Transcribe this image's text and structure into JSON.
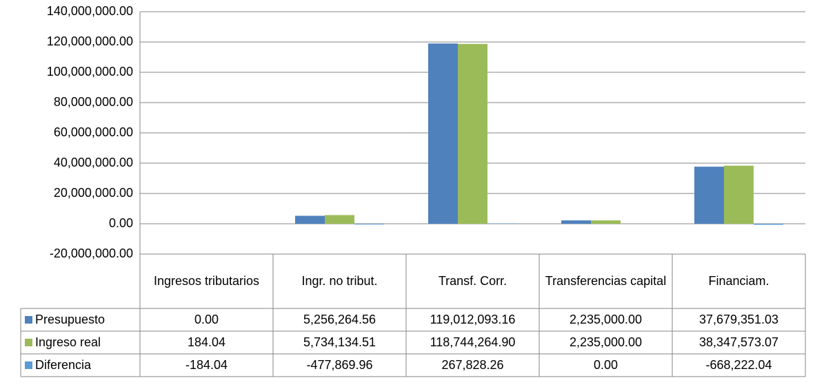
{
  "chart_data": {
    "type": "bar",
    "categories": [
      "Ingresos tributarios",
      "Ingr. no tribut.",
      "Transf. Corr.",
      "Transferencias capital",
      "Financiam."
    ],
    "series": [
      {
        "name": "Presupuesto",
        "color": "#4f81bd",
        "values": [
          0,
          5256264.56,
          119012093.16,
          2235000,
          37679351.03
        ],
        "value_labels": [
          "0.00",
          "5,256,264.56",
          "119,012,093.16",
          "2,235,000.00",
          "37,679,351.03"
        ]
      },
      {
        "name": "Ingreso real",
        "color": "#9bbb59",
        "values": [
          184.04,
          5734134.51,
          118744264.9,
          2235000,
          38347573.07
        ],
        "value_labels": [
          "184.04",
          "5,734,134.51",
          "118,744,264.90",
          "2,235,000.00",
          "38,347,573.07"
        ]
      },
      {
        "name": "Diferencia",
        "color": "#5b9bd5",
        "values": [
          -184.04,
          -477869.96,
          267828.26,
          0,
          -668222.04
        ],
        "value_labels": [
          "-184.04",
          "-477,869.96",
          "267,828.26",
          "0.00",
          "-668,222.04"
        ]
      }
    ],
    "ylim": [
      -20000000,
      140000000
    ],
    "yticks": [
      {
        "value": -20000000,
        "label": "-20,000,000.00"
      },
      {
        "value": 0,
        "label": "0.00"
      },
      {
        "value": 20000000,
        "label": "20,000,000.00"
      },
      {
        "value": 40000000,
        "label": "40,000,000.00"
      },
      {
        "value": 60000000,
        "label": "60,000,000.00"
      },
      {
        "value": 80000000,
        "label": "80,000,000.00"
      },
      {
        "value": 100000000,
        "label": "100,000,000.00"
      },
      {
        "value": 120000000,
        "label": "120,000,000.00"
      },
      {
        "value": 140000000,
        "label": "140,000,000.00"
      }
    ],
    "grid": true,
    "legend": "table"
  }
}
